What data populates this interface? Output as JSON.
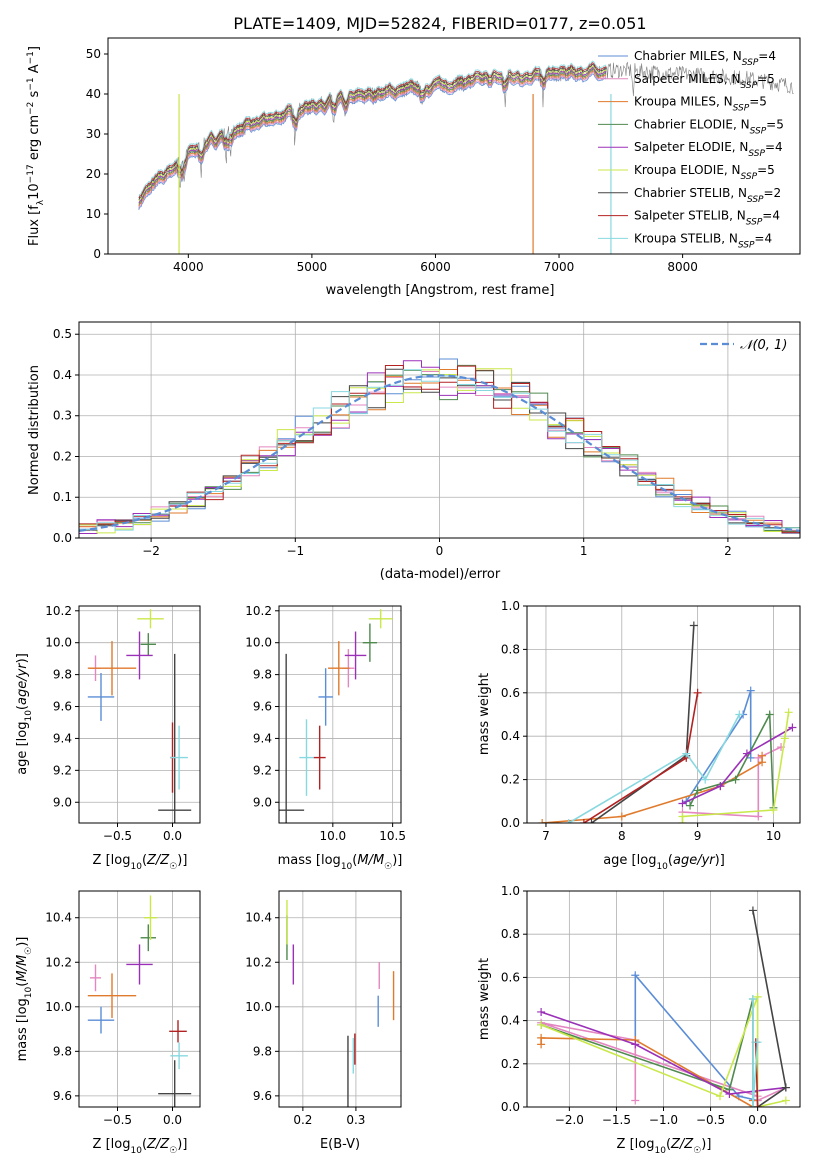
{
  "title": "PLATE=1409, MJD=52824, FIBERID=0177, z=0.051",
  "colors": [
    "#5b8dd6",
    "#e487c0",
    "#e07a2c",
    "#4f8a4f",
    "#9b30b8",
    "#c9e84a",
    "#444444",
    "#b22222",
    "#88d8e0"
  ],
  "chart_data": [
    {
      "type": "line",
      "panel": "spectrum",
      "title": "PLATE=1409, MJD=52824, FIBERID=0177, z=0.051",
      "xlabel": "wavelength [Angstrom, rest frame]",
      "ylabel": "Flux [fλ10−17 erg cm−2 s−1 A−1]",
      "xlim": [
        3350,
        8950
      ],
      "ylim": [
        0,
        54
      ],
      "xticks": [
        4000,
        5000,
        6000,
        7000,
        8000
      ],
      "yticks": [
        0,
        10,
        20,
        30,
        40,
        50
      ],
      "grid": false,
      "legend_position": "top-right",
      "data_color": "#808080",
      "continuum": {
        "x": [
          3600,
          3700,
          3900,
          4000,
          4300,
          4500,
          4800,
          5000,
          5500,
          6000,
          6500,
          7000,
          7500,
          8000,
          8500,
          8900
        ],
        "y": [
          13,
          17,
          22,
          25,
          30,
          32,
          35,
          37,
          40,
          42,
          44,
          45,
          46,
          45,
          44,
          42
        ]
      },
      "model_end": [
        7380,
        7380,
        7380,
        7380,
        7380,
        7380,
        7380,
        7380,
        7380
      ],
      "series": [
        {
          "name": "Chabrier MILES",
          "nssp": "4"
        },
        {
          "name": "Salpeter MILES",
          "nssp": "5"
        },
        {
          "name": "Kroupa MILES",
          "nssp": "5"
        },
        {
          "name": "Chabrier ELODIE",
          "nssp": "5"
        },
        {
          "name": "Salpeter ELODIE",
          "nssp": "4"
        },
        {
          "name": "Kroupa ELODIE",
          "nssp": "5"
        },
        {
          "name": "Chabrier STELIB",
          "nssp": "2"
        },
        {
          "name": "Salpeter STELIB",
          "nssp": "4"
        },
        {
          "name": "Kroupa STELIB",
          "nssp": "4"
        }
      ],
      "legend_suffix": "SSP"
    },
    {
      "type": "histogram",
      "panel": "residuals",
      "xlabel": "(data-model)/error",
      "ylabel": "Normed distribution",
      "xlim": [
        -2.5,
        2.5
      ],
      "ylim": [
        0,
        0.53
      ],
      "xticks": [
        -2,
        -1,
        0,
        1,
        2
      ],
      "yticks": [
        0.0,
        0.1,
        0.2,
        0.3,
        0.4,
        0.5
      ],
      "grid": true,
      "legend": "𝒩(0, 1)",
      "legend_position": "top-right",
      "bin_width": 0.125
    },
    {
      "type": "scatter",
      "panel": "age-vs-Z",
      "xlabel": "Z [log10(Z/Z☉)]",
      "ylabel": "age  [log10(age/yr)]",
      "xlim": [
        -0.85,
        0.25
      ],
      "ylim": [
        8.87,
        10.23
      ],
      "xticks": [
        -0.5,
        0.0
      ],
      "yticks": [
        9.0,
        9.2,
        9.4,
        9.6,
        9.8,
        10.0,
        10.2
      ],
      "grid": true,
      "points": [
        {
          "x": -0.65,
          "y": 9.66,
          "xerr": 0.12,
          "yerr": 0.15
        },
        {
          "x": -0.7,
          "y": 9.84,
          "xerr": 0.05,
          "yerr": 0.08
        },
        {
          "x": -0.55,
          "y": 9.84,
          "xerr": 0.22,
          "yerr": 0.17
        },
        {
          "x": -0.22,
          "y": 9.99,
          "xerr": 0.07,
          "yerr": 0.07
        },
        {
          "x": -0.3,
          "y": 9.92,
          "xerr": 0.12,
          "yerr": 0.15
        },
        {
          "x": -0.2,
          "y": 10.15,
          "xerr": 0.12,
          "yerr": 0.06
        },
        {
          "x": 0.02,
          "y": 8.95,
          "xerr": 0.15,
          "yerr": 0.98
        },
        {
          "x": 0.0,
          "y": 9.28,
          "xerr": 0.02,
          "yerr": 0.22
        },
        {
          "x": 0.06,
          "y": 9.28,
          "xerr": 0.08,
          "yerr": 0.2
        }
      ]
    },
    {
      "type": "scatter",
      "panel": "age-vs-mass",
      "xlabel": "mass [log10(M/M☉)]",
      "ylabel": "",
      "xlim": [
        9.55,
        10.57
      ],
      "ylim": [
        8.87,
        10.23
      ],
      "xticks": [
        10.0,
        10.5
      ],
      "yticks": [
        9.0,
        9.2,
        9.4,
        9.6,
        9.8,
        10.0,
        10.2
      ],
      "grid": true,
      "points": [
        {
          "x": 9.94,
          "y": 9.66,
          "xerr": 0.06,
          "yerr": 0.18
        },
        {
          "x": 10.13,
          "y": 9.84,
          "xerr": 0.05,
          "yerr": 0.12
        },
        {
          "x": 10.05,
          "y": 9.84,
          "xerr": 0.09,
          "yerr": 0.17
        },
        {
          "x": 10.31,
          "y": 10.0,
          "xerr": 0.06,
          "yerr": 0.12
        },
        {
          "x": 10.19,
          "y": 9.92,
          "xerr": 0.09,
          "yerr": 0.15
        },
        {
          "x": 10.4,
          "y": 10.15,
          "xerr": 0.1,
          "yerr": 0.06
        },
        {
          "x": 9.61,
          "y": 8.95,
          "xerr": 0.15,
          "yerr": 0.98
        },
        {
          "x": 9.89,
          "y": 9.28,
          "xerr": 0.05,
          "yerr": 0.2
        },
        {
          "x": 9.78,
          "y": 9.28,
          "xerr": 0.06,
          "yerr": 0.24
        }
      ]
    },
    {
      "type": "line",
      "panel": "mass-weight-vs-age",
      "xlabel": "age  [log10(age/yr)]",
      "ylabel": "mass weight",
      "xlim": [
        6.75,
        10.35
      ],
      "ylim": [
        0,
        1.0
      ],
      "xticks": [
        7,
        8,
        9,
        10
      ],
      "yticks": [
        0.0,
        0.2,
        0.4,
        0.6,
        0.8,
        1.0
      ],
      "grid": true,
      "series": [
        {
          "x": [
            8.85,
            9.6,
            9.7,
            9.7
          ],
          "y": [
            0.1,
            0.5,
            0.61,
            0.3
          ]
        },
        {
          "x": [
            8.8,
            9.8,
            9.8,
            10.1
          ],
          "y": [
            0.05,
            0.03,
            0.3,
            0.35
          ]
        },
        {
          "x": [
            6.95,
            8.0,
            9.3,
            9.85,
            9.85
          ],
          "y": [
            0.0,
            0.03,
            0.17,
            0.28,
            0.31
          ]
        },
        {
          "x": [
            8.9,
            9.0,
            9.5,
            9.95,
            10.0
          ],
          "y": [
            0.08,
            0.15,
            0.2,
            0.5,
            0.07
          ]
        },
        {
          "x": [
            8.8,
            9.3,
            9.65,
            10.25
          ],
          "y": [
            0.09,
            0.17,
            0.32,
            0.44
          ]
        },
        {
          "x": [
            8.8,
            8.8,
            10.0,
            10.15,
            10.2
          ],
          "y": [
            0.0,
            0.03,
            0.06,
            0.39,
            0.51
          ]
        },
        {
          "x": [
            7.6,
            8.85,
            8.95
          ],
          "y": [
            0.0,
            0.31,
            0.91
          ]
        },
        {
          "x": [
            7.5,
            8.85,
            9.0
          ],
          "y": [
            0.0,
            0.3,
            0.6
          ]
        },
        {
          "x": [
            7.3,
            8.85,
            9.1,
            9.55
          ],
          "y": [
            0.0,
            0.32,
            0.2,
            0.5
          ]
        }
      ]
    },
    {
      "type": "scatter",
      "panel": "mass-vs-Z",
      "xlabel": "Z [log10(Z/Z☉)]",
      "ylabel": "mass [log10(M/M☉)]",
      "xlim": [
        -0.85,
        0.25
      ],
      "ylim": [
        9.55,
        10.52
      ],
      "xticks": [
        -0.5,
        0.0
      ],
      "yticks": [
        9.6,
        9.8,
        10.0,
        10.2,
        10.4
      ],
      "grid": true,
      "points": [
        {
          "x": -0.65,
          "y": 9.94,
          "xerr": 0.12,
          "yerr": 0.06
        },
        {
          "x": -0.7,
          "y": 10.13,
          "xerr": 0.05,
          "yerr": 0.06
        },
        {
          "x": -0.55,
          "y": 10.05,
          "xerr": 0.22,
          "yerr": 0.1
        },
        {
          "x": -0.22,
          "y": 10.31,
          "xerr": 0.07,
          "yerr": 0.06
        },
        {
          "x": -0.3,
          "y": 10.19,
          "xerr": 0.12,
          "yerr": 0.09
        },
        {
          "x": -0.2,
          "y": 10.4,
          "xerr": 0.06,
          "yerr": 0.1
        },
        {
          "x": 0.02,
          "y": 9.61,
          "xerr": 0.15,
          "yerr": 0.15
        },
        {
          "x": 0.05,
          "y": 9.89,
          "xerr": 0.08,
          "yerr": 0.05
        },
        {
          "x": 0.06,
          "y": 9.78,
          "xerr": 0.08,
          "yerr": 0.06
        }
      ]
    },
    {
      "type": "scatter",
      "panel": "mass-vs-ebv",
      "xlabel": "E(B-V)",
      "ylabel": "",
      "xlim": [
        0.155,
        0.385
      ],
      "ylim": [
        9.55,
        10.52
      ],
      "xticks": [
        0.2,
        0.3
      ],
      "yticks": [
        9.6,
        9.8,
        10.0,
        10.2,
        10.4
      ],
      "grid": true,
      "points": [
        {
          "x": 0.342,
          "y": 9.98,
          "xerr": 0,
          "yerr": 0.07
        },
        {
          "x": 0.344,
          "y": 10.14,
          "xerr": 0,
          "yerr": 0.06
        },
        {
          "x": 0.371,
          "y": 10.05,
          "xerr": 0,
          "yerr": 0.11
        },
        {
          "x": 0.17,
          "y": 10.31,
          "xerr": 0,
          "yerr": 0.1
        },
        {
          "x": 0.182,
          "y": 10.19,
          "xerr": 0,
          "yerr": 0.09
        },
        {
          "x": 0.17,
          "y": 10.38,
          "xerr": 0,
          "yerr": 0.1
        },
        {
          "x": 0.285,
          "y": 9.71,
          "xerr": 0,
          "yerr": 0.16
        },
        {
          "x": 0.298,
          "y": 9.81,
          "xerr": 0,
          "yerr": 0.07
        },
        {
          "x": 0.295,
          "y": 9.78,
          "xerr": 0,
          "yerr": 0.08
        }
      ]
    },
    {
      "type": "line",
      "panel": "mass-weight-vs-Z",
      "xlabel": "Z [log10(Z/Z☉)]",
      "ylabel": "mass weight",
      "xlim": [
        -2.45,
        0.45
      ],
      "ylim": [
        0,
        1.0
      ],
      "xticks": [
        -2.0,
        -1.5,
        -1.0,
        -0.5,
        0.0
      ],
      "yticks": [
        0.0,
        0.2,
        0.4,
        0.6,
        0.8,
        1.0
      ],
      "grid": true,
      "series": [
        {
          "x": [
            -1.3,
            -1.3,
            -0.2,
            0.0,
            0.0
          ],
          "y": [
            0.31,
            0.61,
            0.05,
            0.03,
            0.0
          ]
        },
        {
          "x": [
            -1.3,
            -1.3,
            -2.3,
            0.0,
            0.0,
            0.3
          ],
          "y": [
            0.03,
            0.31,
            0.39,
            0.05,
            0.03,
            0.09
          ]
        },
        {
          "x": [
            -2.3,
            -2.3,
            -1.3,
            -0.05,
            -0.05
          ],
          "y": [
            0.29,
            0.32,
            0.31,
            0.0,
            0.03
          ]
        },
        {
          "x": [
            -2.3,
            -0.3,
            -0.05,
            -0.05
          ],
          "y": [
            0.38,
            0.08,
            0.5,
            0.07
          ]
        },
        {
          "x": [
            -2.3,
            -1.3,
            -0.3,
            0.3
          ],
          "y": [
            0.44,
            0.29,
            0.06,
            0.09
          ]
        },
        {
          "x": [
            -2.3,
            -0.4,
            0.0,
            0.0,
            0.3
          ],
          "y": [
            0.38,
            0.05,
            0.51,
            0.0,
            0.03
          ]
        },
        {
          "x": [
            -0.05,
            0.3,
            0.0
          ],
          "y": [
            0.91,
            0.09,
            0.0
          ]
        },
        {
          "x": [
            -0.02,
            0.0
          ],
          "y": [
            0.3,
            0.0
          ]
        },
        {
          "x": [
            -0.05,
            -0.05,
            0.0
          ],
          "y": [
            0.5,
            0.0,
            0.3
          ]
        }
      ]
    }
  ]
}
